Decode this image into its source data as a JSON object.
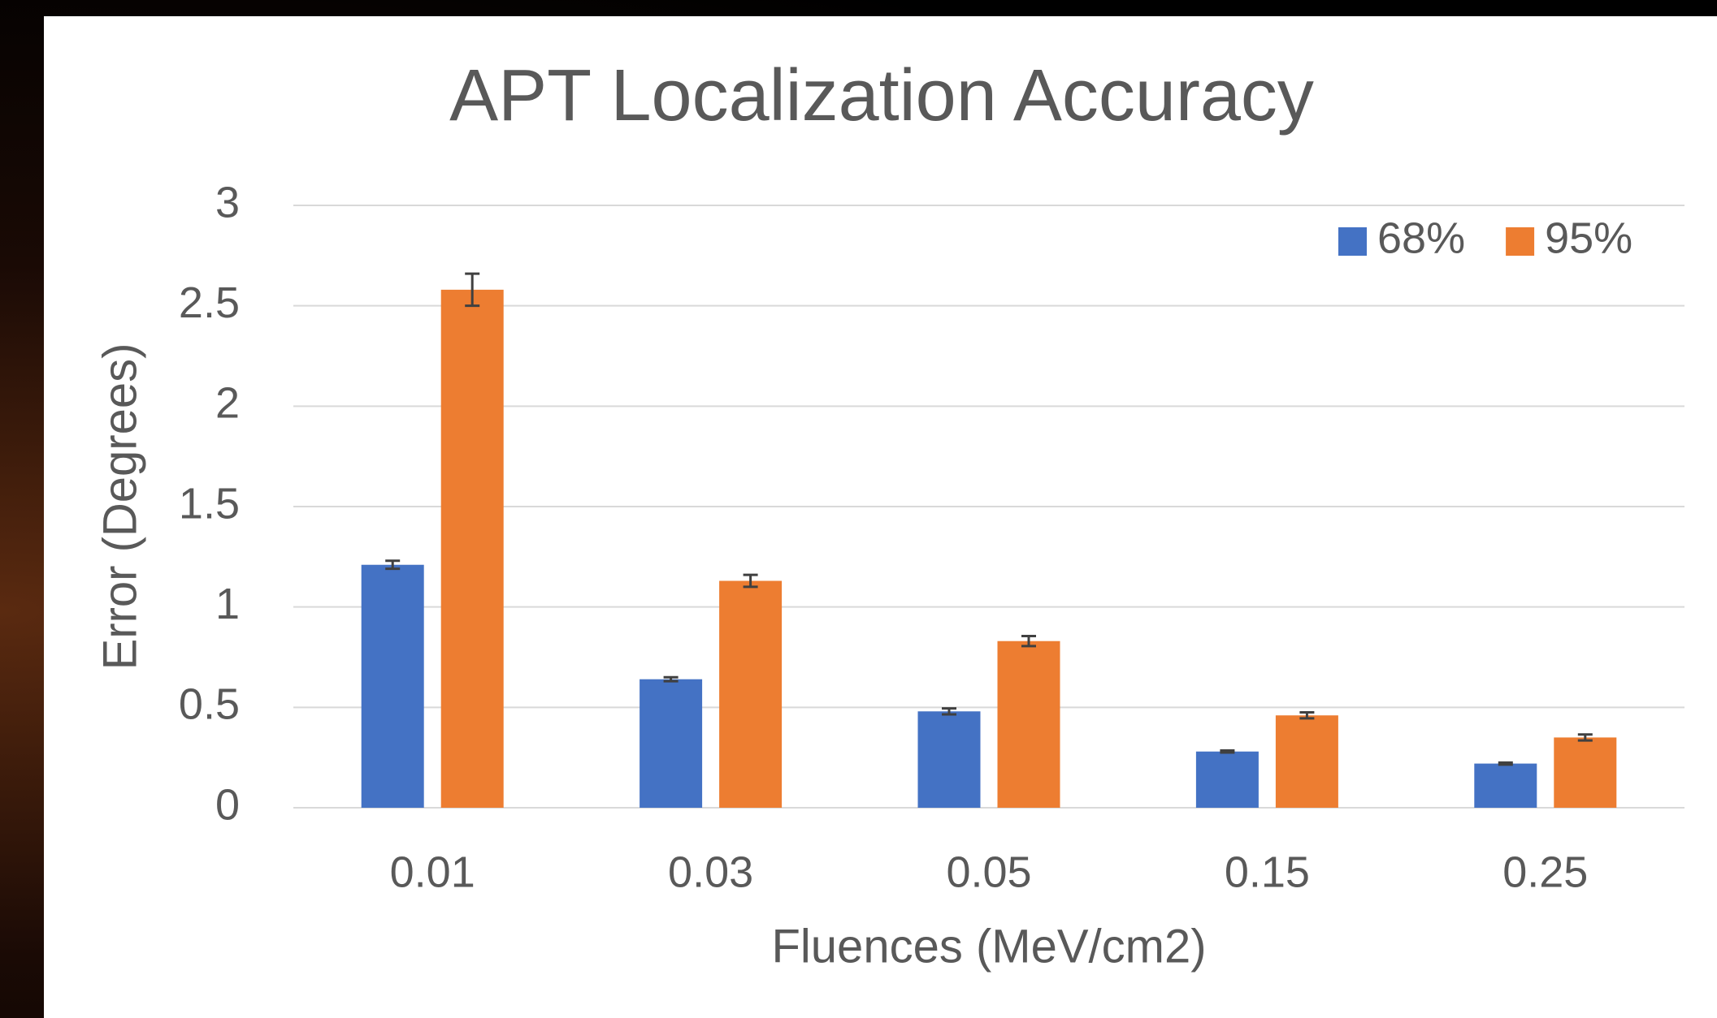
{
  "chart_data": {
    "type": "bar",
    "title": "APT Localization Accuracy",
    "x_label": "Fluences (MeV/cm2)",
    "y_label": "Error (Degrees)",
    "categories": [
      "0.01",
      "0.03",
      "0.05",
      "0.15",
      "0.25"
    ],
    "series": [
      {
        "name": "68%",
        "color": "#4472c4",
        "values": [
          1.21,
          0.64,
          0.48,
          0.28,
          0.22
        ],
        "errors": [
          0.02,
          0.01,
          0.015,
          0.005,
          0.005
        ]
      },
      {
        "name": "95%",
        "color": "#ed7d31",
        "values": [
          2.58,
          1.13,
          0.83,
          0.46,
          0.35
        ],
        "errors": [
          0.08,
          0.03,
          0.025,
          0.015,
          0.015
        ]
      }
    ],
    "ylim": [
      0,
      3
    ],
    "yticks": [
      0,
      {
        "value": 0.5,
        "label": "0.5"
      },
      1,
      {
        "value": 1.5,
        "label": "1.5"
      },
      2,
      {
        "value": 2.5,
        "label": "2.5"
      },
      3
    ],
    "grid": true,
    "legend": "upper right"
  }
}
